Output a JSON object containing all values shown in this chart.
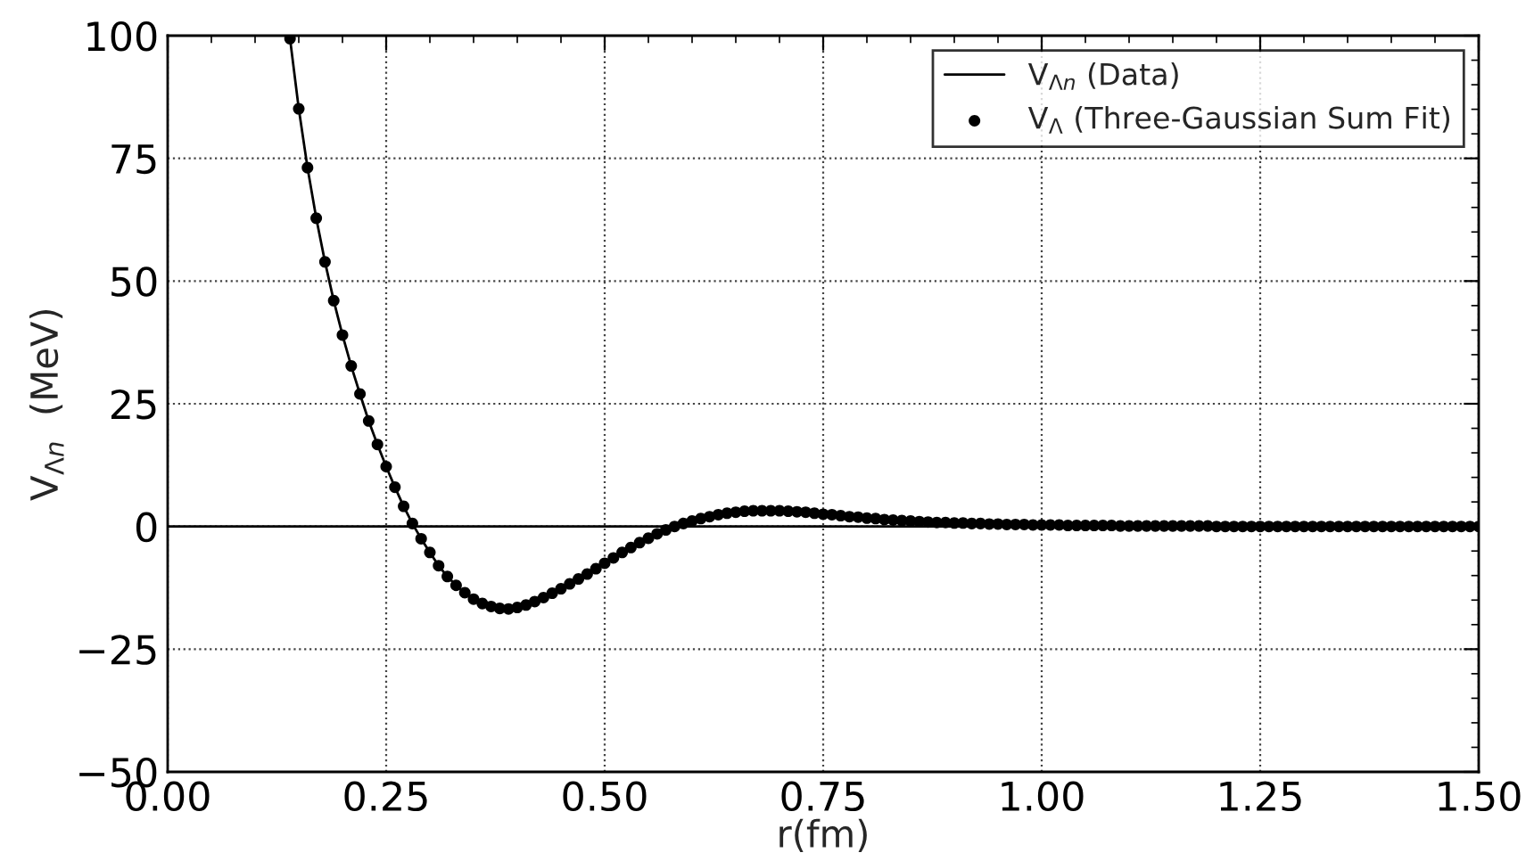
{
  "chart_data": {
    "type": "line",
    "xlabel": "r(fm)",
    "ylabel": "V$_{Λn}$  (MeV)",
    "xlim": [
      0.0,
      1.5
    ],
    "ylim": [
      -50,
      100
    ],
    "xticks": [
      {
        "value": 0,
        "label": "0.00"
      },
      {
        "value": 0.25,
        "label": "0.25"
      },
      {
        "value": 0.5,
        "label": "0.50"
      },
      {
        "value": 0.75,
        "label": "0.75"
      },
      {
        "value": 1.0,
        "label": "1.00"
      },
      {
        "value": 1.25,
        "label": "1.25"
      },
      {
        "value": 1.5,
        "label": "1.50"
      }
    ],
    "yticks": [
      {
        "value": -50,
        "label": "−50"
      },
      {
        "value": -25,
        "label": "−25"
      },
      0,
      25,
      50,
      75,
      100
    ],
    "grid": true,
    "legend": "top right",
    "ref_lines": [
      {
        "axis": "y",
        "value": 0,
        "color": "#000000",
        "line_style": "solid"
      }
    ],
    "x": [
      0.14,
      0.15,
      0.16,
      0.17,
      0.18,
      0.19,
      0.2,
      0.21,
      0.22,
      0.23,
      0.24,
      0.25,
      0.26,
      0.27,
      0.28,
      0.29,
      0.3,
      0.31,
      0.32,
      0.33,
      0.34,
      0.35,
      0.36,
      0.37,
      0.38,
      0.39,
      0.4,
      0.41,
      0.42,
      0.43,
      0.44,
      0.45,
      0.46,
      0.47,
      0.48,
      0.49,
      0.5,
      0.51,
      0.52,
      0.53,
      0.54,
      0.55,
      0.56,
      0.57,
      0.58,
      0.59,
      0.6,
      0.61,
      0.62,
      0.63,
      0.64,
      0.65,
      0.66,
      0.67,
      0.68,
      0.69,
      0.7,
      0.71,
      0.72,
      0.73,
      0.74,
      0.75,
      0.76,
      0.77,
      0.78,
      0.79,
      0.8,
      0.81,
      0.82,
      0.83,
      0.84,
      0.85,
      0.86,
      0.87,
      0.88,
      0.89,
      0.9,
      0.91,
      0.92,
      0.93,
      0.94,
      0.95,
      0.96,
      0.97,
      0.98,
      0.99,
      1.0,
      1.01,
      1.02,
      1.03,
      1.04,
      1.05,
      1.06,
      1.07,
      1.08,
      1.09,
      1.1,
      1.11,
      1.12,
      1.13,
      1.14,
      1.15,
      1.16,
      1.17,
      1.18,
      1.19,
      1.2,
      1.21,
      1.22,
      1.23,
      1.24,
      1.25,
      1.26,
      1.27,
      1.28,
      1.29,
      1.3,
      1.31,
      1.32,
      1.33,
      1.34,
      1.35,
      1.36,
      1.37,
      1.38,
      1.39,
      1.4,
      1.41,
      1.42,
      1.43,
      1.44,
      1.45,
      1.46,
      1.47,
      1.48,
      1.49,
      1.5
    ],
    "series": [
      {
        "name": "V$_{Λn}$ (Data)",
        "marker": "none",
        "line_style": "solid",
        "color": "#000000",
        "values": [
          99.4,
          85.1,
          73.1,
          62.8,
          53.9,
          46.0,
          39.0,
          32.7,
          27.0,
          21.5,
          16.7,
          12.2,
          8.0,
          4.1,
          0.6,
          -2.5,
          -5.3,
          -8.0,
          -10.2,
          -12.0,
          -13.5,
          -14.8,
          -15.7,
          -16.3,
          -16.7,
          -16.8,
          -16.5,
          -16.0,
          -15.3,
          -14.5,
          -13.6,
          -12.7,
          -11.7,
          -10.7,
          -9.7,
          -8.6,
          -7.5,
          -6.4,
          -5.3,
          -4.3,
          -3.3,
          -2.4,
          -1.5,
          -0.7,
          0.0,
          0.6,
          1.1,
          1.6,
          2.0,
          2.4,
          2.7,
          2.9,
          3.1,
          3.2,
          3.2,
          3.2,
          3.2,
          3.1,
          3.0,
          2.9,
          2.7,
          2.5,
          2.4,
          2.2,
          2.0,
          1.9,
          1.7,
          1.6,
          1.4,
          1.3,
          1.2,
          1.1,
          1.0,
          0.9,
          0.8,
          0.8,
          0.7,
          0.7,
          0.6,
          0.6,
          0.5,
          0.5,
          0.4,
          0.4,
          0.4,
          0.3,
          0.3,
          0.3,
          0.3,
          0.2,
          0.2,
          0.2,
          0.2,
          0.2,
          0.2,
          0.1,
          0.1,
          0.1,
          0.1,
          0.1,
          0.1,
          0.1,
          0.1,
          0.1,
          0.1,
          0.1,
          0,
          0,
          0,
          0,
          0,
          0,
          0,
          0,
          0,
          0,
          0,
          0,
          0,
          0,
          0,
          0,
          0,
          0,
          0,
          0,
          0,
          0,
          0,
          0,
          0,
          0,
          0,
          0,
          0,
          0,
          0
        ]
      },
      {
        "name": "V$_{Λ}$ (Three-Gaussian Sum Fit)",
        "type": "scatter",
        "marker": "circle",
        "color": "#000000",
        "values": [
          99.4,
          85.1,
          73.1,
          62.8,
          53.9,
          46.0,
          39.0,
          32.7,
          27.0,
          21.5,
          16.7,
          12.2,
          8.0,
          4.1,
          0.6,
          -2.5,
          -5.3,
          -8.0,
          -10.2,
          -12.0,
          -13.5,
          -14.8,
          -15.7,
          -16.3,
          -16.7,
          -16.8,
          -16.5,
          -16.0,
          -15.3,
          -14.5,
          -13.6,
          -12.7,
          -11.7,
          -10.7,
          -9.7,
          -8.6,
          -7.5,
          -6.4,
          -5.3,
          -4.3,
          -3.3,
          -2.4,
          -1.5,
          -0.7,
          0.0,
          0.6,
          1.1,
          1.6,
          2.0,
          2.4,
          2.7,
          2.9,
          3.1,
          3.2,
          3.2,
          3.2,
          3.2,
          3.1,
          3.0,
          2.9,
          2.7,
          2.5,
          2.4,
          2.2,
          2.0,
          1.9,
          1.7,
          1.6,
          1.4,
          1.3,
          1.2,
          1.1,
          1.0,
          0.9,
          0.8,
          0.8,
          0.7,
          0.7,
          0.6,
          0.6,
          0.5,
          0.5,
          0.4,
          0.4,
          0.4,
          0.3,
          0.3,
          0.3,
          0.3,
          0.2,
          0.2,
          0.2,
          0.2,
          0.2,
          0.2,
          0.1,
          0.1,
          0.1,
          0.1,
          0.1,
          0.1,
          0.1,
          0.1,
          0.1,
          0.1,
          0.1,
          0,
          0,
          0,
          0,
          0,
          0,
          0,
          0,
          0,
          0,
          0,
          0,
          0,
          0,
          0,
          0,
          0,
          0,
          0,
          0,
          0,
          0,
          0,
          0,
          0,
          0,
          0,
          0,
          0,
          0,
          0
        ]
      }
    ]
  }
}
